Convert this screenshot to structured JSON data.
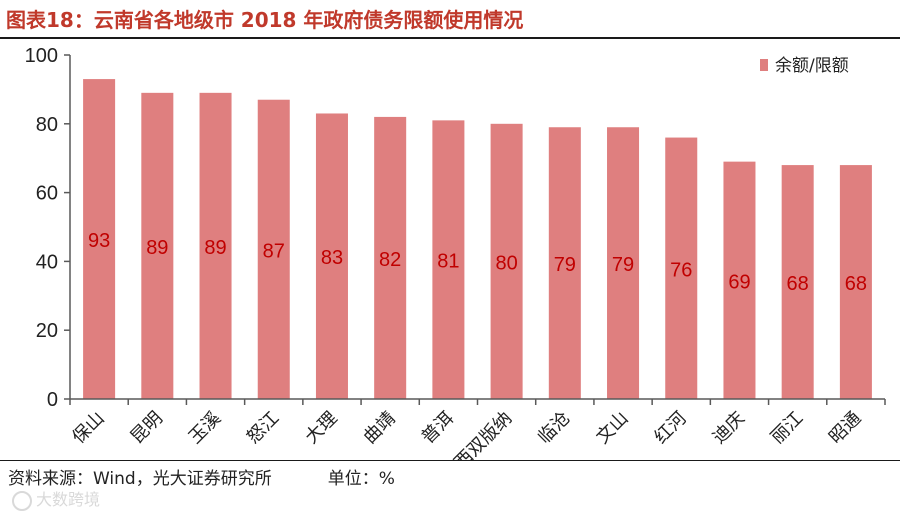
{
  "title": "图表18：云南省各地级市 2018 年政府债务限额使用情况",
  "footer": {
    "source": "资料来源：Wind，光大证券研究所",
    "unit": "单位：%"
  },
  "watermark": "大数跨境",
  "chart_data": {
    "type": "bar",
    "categories": [
      "保山",
      "昆明",
      "玉溪",
      "怒江",
      "大理",
      "曲靖",
      "普洱",
      "西双版纳",
      "临沧",
      "文山",
      "红河",
      "迪庆",
      "丽江",
      "昭通"
    ],
    "series": [
      {
        "name": "余额/限额",
        "values": [
          93,
          89,
          89,
          87,
          83,
          82,
          81,
          80,
          79,
          79,
          76,
          69,
          68,
          68
        ]
      }
    ],
    "data_labels": [
      "93",
      "89",
      "89",
      "87",
      "83",
      "82",
      "81",
      "80",
      "79",
      "79",
      "76",
      "69",
      "68",
      "68"
    ],
    "ylim": [
      0,
      100
    ],
    "yticks": [
      0,
      20,
      40,
      60,
      80,
      100
    ],
    "ytick_labels": [
      "0",
      "20",
      "40",
      "60",
      "80",
      "100"
    ],
    "legend": "top-right",
    "colors": {
      "bar": "#df7f7f",
      "label": "#c00000",
      "axis": "#595959"
    }
  }
}
